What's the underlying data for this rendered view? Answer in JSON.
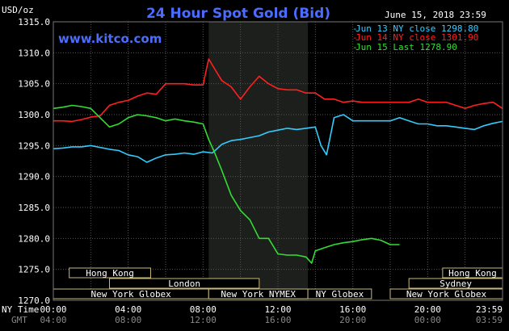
{
  "chart_data": {
    "type": "line",
    "title": "24 Hour Spot Gold (Bid)",
    "ylabel": "USD/oz",
    "source": "www.kitco.com",
    "date": "June 15, 2018 23:59",
    "ylim": [
      1270,
      1315
    ],
    "yticks": [
      "1270.0",
      "1275.0",
      "1280.0",
      "1285.0",
      "1290.0",
      "1295.0",
      "1300.0",
      "1305.0",
      "1310.0",
      "1315.0"
    ],
    "xlim": [
      0,
      24
    ],
    "xticks_ny": [
      "00:00",
      "04:00",
      "08:00",
      "12:00",
      "16:00",
      "20:00",
      "23:59"
    ],
    "xticks_gmt": [
      "04:00",
      "08:00",
      "12:00",
      "16:00",
      "20:00",
      "00:00",
      "03:59"
    ],
    "ny_time_label": "NY Time",
    "gmt_label": "GMT",
    "shaded_hours": [
      8.3,
      13.6
    ],
    "grid": true,
    "legend_position": "top-right",
    "series": [
      {
        "name": "Jun 13 NY close 1298.80",
        "color": "#33ccff",
        "x": [
          0,
          0.5,
          1,
          1.5,
          2,
          2.5,
          3,
          3.5,
          4,
          4.5,
          5,
          5.5,
          6,
          6.5,
          7,
          7.5,
          8,
          8.5,
          9,
          9.5,
          10,
          10.5,
          11,
          11.5,
          12,
          12.5,
          13,
          13.5,
          14,
          14.3,
          14.6,
          15,
          15.5,
          16,
          16.5,
          17,
          17.5,
          18,
          18.5,
          19,
          19.5,
          20,
          20.5,
          21,
          21.5,
          22,
          22.5,
          23,
          23.5,
          24
        ],
        "values": [
          1294.5,
          1294.6,
          1294.8,
          1294.8,
          1295.0,
          1294.7,
          1294.4,
          1294.2,
          1293.5,
          1293.2,
          1292.3,
          1293.0,
          1293.5,
          1293.6,
          1293.8,
          1293.6,
          1294.0,
          1293.8,
          1295.2,
          1295.8,
          1296.0,
          1296.3,
          1296.6,
          1297.2,
          1297.5,
          1297.8,
          1297.6,
          1297.8,
          1298.0,
          1295.0,
          1293.5,
          1299.5,
          1300.0,
          1299.0,
          1299.0,
          1299.0,
          1299.0,
          1299.0,
          1299.5,
          1299.0,
          1298.5,
          1298.5,
          1298.2,
          1298.2,
          1298.0,
          1297.8,
          1297.6,
          1298.2,
          1298.6,
          1298.9
        ]
      },
      {
        "name": "Jun 14 NY close 1301.90",
        "color": "#ff2020",
        "x": [
          0,
          0.5,
          1,
          1.5,
          2,
          2.5,
          3,
          3.5,
          4,
          4.5,
          5,
          5.5,
          6,
          6.5,
          7,
          7.5,
          8,
          8.3,
          8.6,
          9,
          9.5,
          10,
          10.5,
          11,
          11.5,
          12,
          12.5,
          13,
          13.5,
          14,
          14.5,
          15,
          15.5,
          16,
          16.5,
          17,
          17.5,
          18,
          18.5,
          19,
          19.5,
          20,
          20.5,
          21,
          21.5,
          22,
          22.5,
          23,
          23.5,
          24
        ],
        "values": [
          1299.0,
          1299.0,
          1298.9,
          1299.2,
          1299.6,
          1299.8,
          1301.5,
          1302.0,
          1302.3,
          1303.0,
          1303.5,
          1303.3,
          1305.0,
          1305.0,
          1305.0,
          1304.8,
          1304.8,
          1309.0,
          1307.5,
          1305.5,
          1304.5,
          1302.5,
          1304.5,
          1306.2,
          1305.0,
          1304.2,
          1304.0,
          1304.0,
          1303.5,
          1303.5,
          1302.5,
          1302.5,
          1302.0,
          1302.2,
          1302.0,
          1302.0,
          1302.0,
          1302.0,
          1302.0,
          1302.0,
          1302.5,
          1302.0,
          1302.0,
          1302.0,
          1301.5,
          1301.0,
          1301.5,
          1301.8,
          1302.0,
          1301.0
        ]
      },
      {
        "name": "Jun 15 Last 1278.90",
        "color": "#33dd33",
        "x": [
          0,
          0.5,
          1,
          1.5,
          2,
          2.5,
          3,
          3.5,
          4,
          4.5,
          5,
          5.5,
          6,
          6.5,
          7,
          7.5,
          8,
          8.3,
          8.6,
          9,
          9.5,
          10,
          10.5,
          11,
          11.5,
          12,
          12.5,
          13,
          13.5,
          13.8,
          14,
          14.5,
          15,
          15.5,
          16,
          16.5,
          17,
          17.5,
          18,
          18.5
        ],
        "values": [
          1301.0,
          1301.2,
          1301.5,
          1301.3,
          1301.0,
          1299.5,
          1298.0,
          1298.5,
          1299.5,
          1300.0,
          1299.8,
          1299.5,
          1299.0,
          1299.3,
          1299.0,
          1298.8,
          1298.5,
          1296.0,
          1294.0,
          1291.0,
          1287.0,
          1284.5,
          1283.0,
          1280.0,
          1280.0,
          1277.5,
          1277.3,
          1277.3,
          1277.0,
          1276.0,
          1278.0,
          1278.5,
          1279.0,
          1279.3,
          1279.5,
          1279.8,
          1280.0,
          1279.7,
          1279.0,
          1279.0
        ]
      }
    ]
  },
  "markets": [
    {
      "name": "Hong Kong",
      "row": 1,
      "start": 0.85,
      "end": 5.2
    },
    {
      "name": "London",
      "row": 2,
      "start": 3.0,
      "end": 11.0
    },
    {
      "name": "New York Globex",
      "row": 3,
      "start": 0,
      "end": 8.3
    },
    {
      "name": "New York NYMEX",
      "row": 3,
      "start": 8.3,
      "end": 13.6
    },
    {
      "name": "NY Globex",
      "row": 3,
      "start": 13.6,
      "end": 17.0
    },
    {
      "name": "Hong Kong",
      "row": 1,
      "start": 20.8,
      "end": 24
    },
    {
      "name": "Sydney",
      "row": 2,
      "start": 19.0,
      "end": 24
    },
    {
      "name": "New York Globex",
      "row": 3,
      "start": 18.0,
      "end": 24
    }
  ]
}
